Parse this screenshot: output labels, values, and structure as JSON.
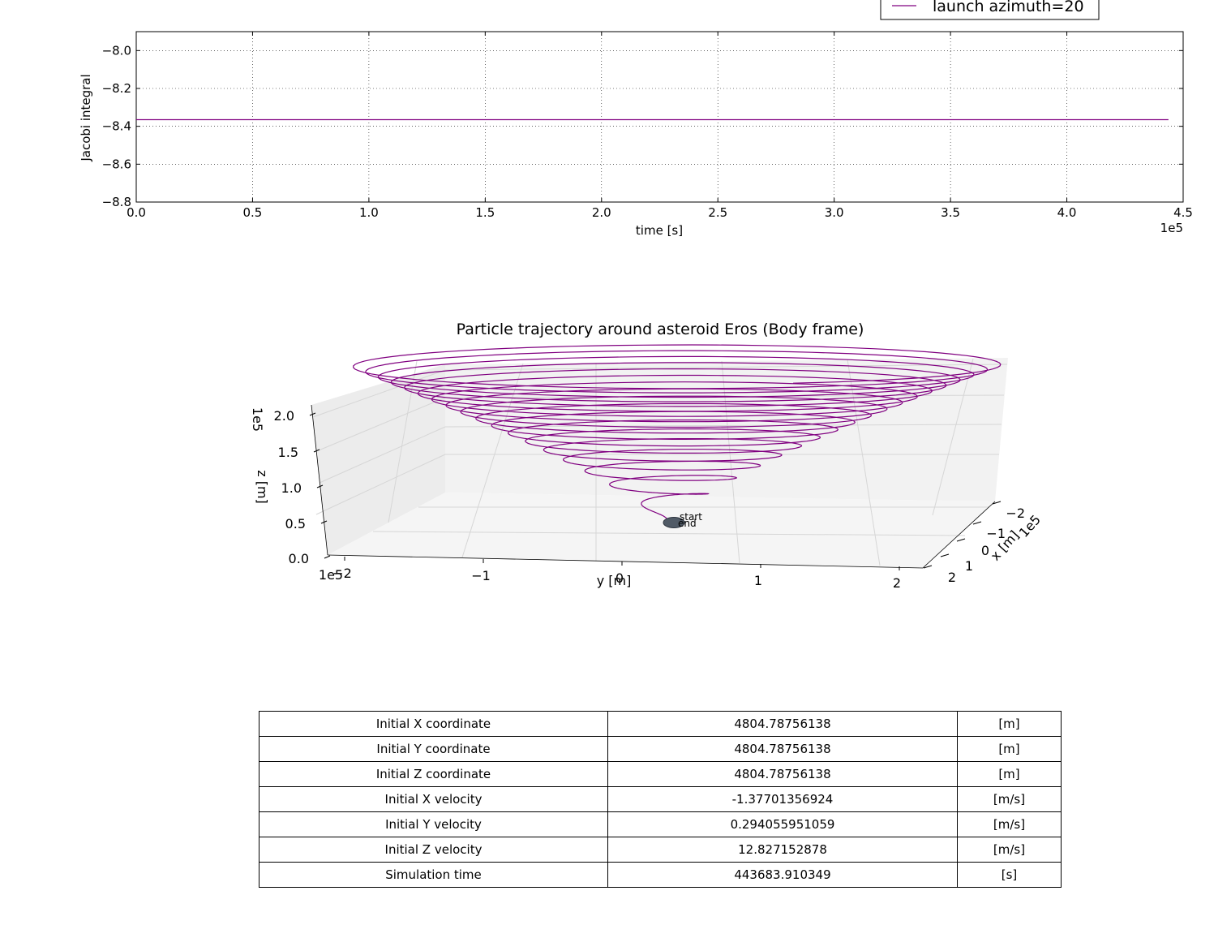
{
  "chart_data": [
    {
      "type": "line",
      "xlabel": "time [s]",
      "ylabel": "Jacobi integral",
      "x_offset_label": "1e5",
      "xlim": [
        0.0,
        4.5
      ],
      "ylim": [
        -8.8,
        -7.9
      ],
      "x_ticks": [
        "0.0",
        "0.5",
        "1.0",
        "1.5",
        "2.0",
        "2.5",
        "3.0",
        "3.5",
        "4.0",
        "4.5"
      ],
      "y_ticks": [
        "−8.0",
        "−8.2",
        "−8.4",
        "−8.6",
        "−8.8"
      ],
      "grid": true,
      "legend": {
        "position": "top-right",
        "entries": [
          "launch azimuth=20"
        ]
      },
      "series": [
        {
          "name": "launch azimuth=20",
          "color": "#800080",
          "x": [
            0.0,
            4.4368
          ],
          "y": [
            -8.365,
            -8.365
          ]
        }
      ]
    },
    {
      "type": "line",
      "title": "Particle trajectory around asteroid Eros (Body frame)",
      "xlabel": "x [m]",
      "ylabel": "y [m]",
      "zlabel": "z [m]",
      "offset_label_x": "1e5",
      "offset_label_y": "1e5",
      "offset_label_z": "1e5",
      "x_ticks": [
        "−2",
        "−1",
        "0",
        "1",
        "2"
      ],
      "y_ticks": [
        "−2",
        "−1",
        "0",
        "1",
        "2"
      ],
      "z_ticks": [
        "0.0",
        "0.5",
        "1.0",
        "1.5",
        "2.0"
      ],
      "annotations": [
        "start",
        "end"
      ],
      "series": [
        {
          "name": "trajectory",
          "color": "#800080",
          "shape": "outward-rising spiral",
          "z_max": 2.2,
          "radius_max": 2.4
        }
      ]
    }
  ],
  "table": {
    "rows": [
      {
        "label": "Initial X coordinate",
        "value": "4804.78756138",
        "unit": "[m]"
      },
      {
        "label": "Initial Y coordinate",
        "value": "4804.78756138",
        "unit": "[m]"
      },
      {
        "label": "Initial Z coordinate",
        "value": "4804.78756138",
        "unit": "[m]"
      },
      {
        "label": "Initial X velocity",
        "value": "-1.37701356924",
        "unit": "[m/s]"
      },
      {
        "label": "Initial Y velocity",
        "value": "0.294055951059",
        "unit": "[m/s]"
      },
      {
        "label": "Initial Z velocity",
        "value": "12.827152878",
        "unit": "[m/s]"
      },
      {
        "label": "Simulation time",
        "value": "443683.910349",
        "unit": "[s]"
      }
    ]
  }
}
